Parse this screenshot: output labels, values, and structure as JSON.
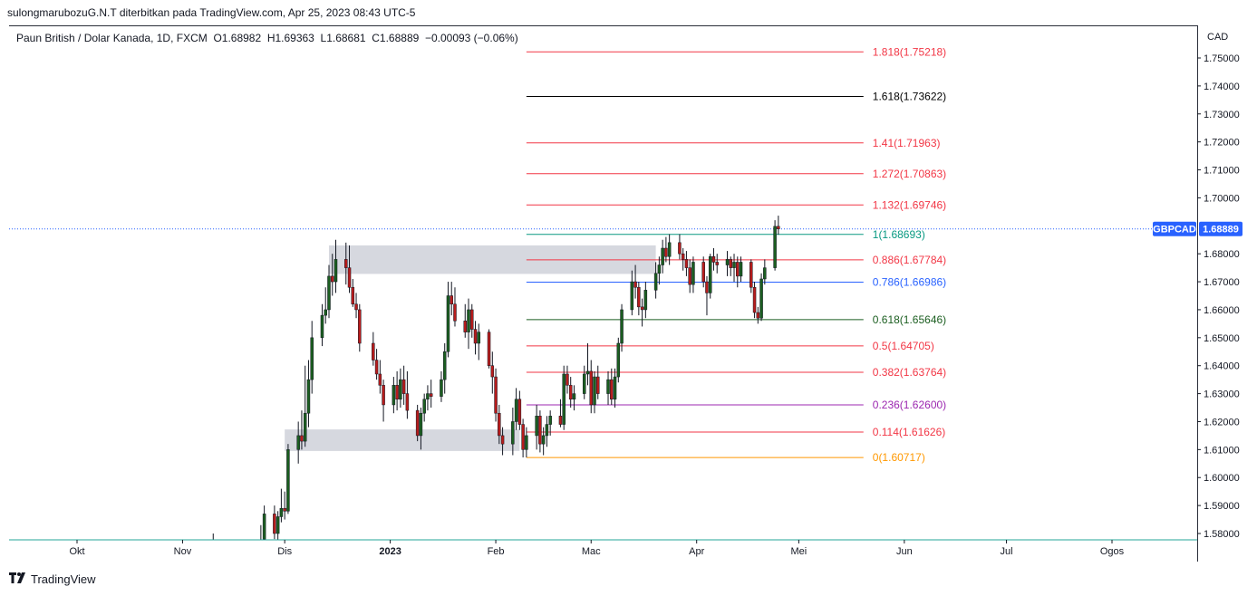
{
  "caption": "sulongmarubozuG.N.T diterbitkan pada TradingView.com, Apr 25, 2023 08:43 UTC-5",
  "symbol_info": {
    "name": "Paun British / Dolar Kanada, 1D, FXCM",
    "ohlc": "O1.68982  H1.69363  L1.68681  C1.68889  −0.00093 (−0.06%)"
  },
  "branding": {
    "logo": "TradingView"
  },
  "chart_data": {
    "type": "candlestick",
    "currency_label": "CAD",
    "ylim": [
      1.575,
      1.76
    ],
    "y_ticks": [
      {
        "value": 1.75,
        "label": "1.75000"
      },
      {
        "value": 1.74,
        "label": "1.74000"
      },
      {
        "value": 1.73,
        "label": "1.73000"
      },
      {
        "value": 1.72,
        "label": "1.72000"
      },
      {
        "value": 1.71,
        "label": "1.71000"
      },
      {
        "value": 1.7,
        "label": "1.70000"
      },
      {
        "value": 1.68,
        "label": "1.68000"
      },
      {
        "value": 1.67,
        "label": "1.67000"
      },
      {
        "value": 1.66,
        "label": "1.66000"
      },
      {
        "value": 1.65,
        "label": "1.65000"
      },
      {
        "value": 1.64,
        "label": "1.64000"
      },
      {
        "value": 1.63,
        "label": "1.63000"
      },
      {
        "value": 1.62,
        "label": "1.62000"
      },
      {
        "value": 1.61,
        "label": "1.61000"
      },
      {
        "value": 1.6,
        "label": "1.60000"
      },
      {
        "value": 1.59,
        "label": "1.59000"
      },
      {
        "value": 1.58,
        "label": "1.58000"
      }
    ],
    "x_axis": {
      "start_date": "2022-09-30",
      "end_date": "2023-09-10",
      "ticks": [
        {
          "date": "2022-10-01",
          "label": "Okt",
          "bold": false
        },
        {
          "date": "2022-11-01",
          "label": "Nov",
          "bold": false
        },
        {
          "date": "2022-12-01",
          "label": "Dis",
          "bold": false
        },
        {
          "date": "2023-01-01",
          "label": "2023",
          "bold": true
        },
        {
          "date": "2023-02-01",
          "label": "Feb",
          "bold": false
        },
        {
          "date": "2023-03-01",
          "label": "Mac",
          "bold": false
        },
        {
          "date": "2023-04-01",
          "label": "Apr",
          "bold": false
        },
        {
          "date": "2023-05-01",
          "label": "Mei",
          "bold": false
        },
        {
          "date": "2023-06-01",
          "label": "Jun",
          "bold": false
        },
        {
          "date": "2023-07-01",
          "label": "Jul",
          "bold": false
        },
        {
          "date": "2023-08-01",
          "label": "Ogos",
          "bold": false
        }
      ]
    },
    "last_price": {
      "symbol": "GBPCAD",
      "value": 1.68889,
      "label": "1.68889",
      "color": "#2962ff"
    },
    "colors": {
      "up": "#1b5e20",
      "down": "#b71c1c",
      "zone": "#d1d4dc"
    },
    "fib_levels": [
      {
        "ratio": "1.818",
        "price": 1.75218,
        "label": "1.818(1.75218)",
        "color": "#f23645"
      },
      {
        "ratio": "1.618",
        "price": 1.73622,
        "label": "1.618(1.73622)",
        "color": "#000000"
      },
      {
        "ratio": "1.41",
        "price": 1.71963,
        "label": "1.41(1.71963)",
        "color": "#f23645"
      },
      {
        "ratio": "1.272",
        "price": 1.70863,
        "label": "1.272(1.70863)",
        "color": "#f23645"
      },
      {
        "ratio": "1.132",
        "price": 1.69746,
        "label": "1.132(1.69746)",
        "color": "#f23645"
      },
      {
        "ratio": "1",
        "price": 1.68693,
        "label": "1(1.68693)",
        "color": "#089981"
      },
      {
        "ratio": "0.886",
        "price": 1.67784,
        "label": "0.886(1.67784)",
        "color": "#f23645"
      },
      {
        "ratio": "0.786",
        "price": 1.66986,
        "label": "0.786(1.66986)",
        "color": "#2962ff"
      },
      {
        "ratio": "0.618",
        "price": 1.65646,
        "label": "0.618(1.65646)",
        "color": "#1b5e20"
      },
      {
        "ratio": "0.5",
        "price": 1.64705,
        "label": "0.5(1.64705)",
        "color": "#f23645"
      },
      {
        "ratio": "0.382",
        "price": 1.63764,
        "label": "0.382(1.63764)",
        "color": "#f23645"
      },
      {
        "ratio": "0.236",
        "price": 1.626,
        "label": "0.236(1.62600)",
        "color": "#9c27b0"
      },
      {
        "ratio": "0.114",
        "price": 1.61626,
        "label": "0.114(1.61626)",
        "color": "#f23645"
      },
      {
        "ratio": "0",
        "price": 1.60717,
        "label": "0(1.60717)",
        "color": "#ff9800"
      }
    ],
    "fib_range": {
      "start_date": "2023-02-10",
      "end_date": "2023-05-20"
    },
    "zones": [
      {
        "start_date": "2022-12-14",
        "end_date": "2023-03-20",
        "top": 1.683,
        "bottom": 1.6728
      },
      {
        "start_date": "2022-12-01",
        "end_date": "2023-02-08",
        "top": 1.6172,
        "bottom": 1.6095
      }
    ],
    "candles": [
      {
        "date": "2022-11-10",
        "o": 1.574,
        "h": 1.58,
        "l": 1.57,
        "c": 1.576
      },
      {
        "date": "2022-11-24",
        "o": 1.5755,
        "h": 1.583,
        "l": 1.573,
        "c": 1.577
      },
      {
        "date": "2022-11-25",
        "o": 1.578,
        "h": 1.59,
        "l": 1.576,
        "c": 1.587
      },
      {
        "date": "2022-11-28",
        "o": 1.587,
        "h": 1.59,
        "l": 1.578,
        "c": 1.58
      },
      {
        "date": "2022-11-29",
        "o": 1.58,
        "h": 1.588,
        "l": 1.577,
        "c": 1.586
      },
      {
        "date": "2022-11-30",
        "o": 1.586,
        "h": 1.596,
        "l": 1.584,
        "c": 1.589
      },
      {
        "date": "2022-12-01",
        "o": 1.589,
        "h": 1.595,
        "l": 1.585,
        "c": 1.588
      },
      {
        "date": "2022-12-02",
        "o": 1.588,
        "h": 1.612,
        "l": 1.587,
        "c": 1.61
      },
      {
        "date": "2022-12-05",
        "o": 1.61,
        "h": 1.62,
        "l": 1.605,
        "c": 1.615
      },
      {
        "date": "2022-12-06",
        "o": 1.615,
        "h": 1.624,
        "l": 1.61,
        "c": 1.613
      },
      {
        "date": "2022-12-07",
        "o": 1.613,
        "h": 1.64,
        "l": 1.611,
        "c": 1.623
      },
      {
        "date": "2022-12-08",
        "o": 1.623,
        "h": 1.642,
        "l": 1.618,
        "c": 1.635
      },
      {
        "date": "2022-12-09",
        "o": 1.635,
        "h": 1.656,
        "l": 1.63,
        "c": 1.65
      },
      {
        "date": "2022-12-12",
        "o": 1.65,
        "h": 1.662,
        "l": 1.647,
        "c": 1.658
      },
      {
        "date": "2022-12-13",
        "o": 1.658,
        "h": 1.668,
        "l": 1.655,
        "c": 1.66
      },
      {
        "date": "2022-12-14",
        "o": 1.66,
        "h": 1.676,
        "l": 1.657,
        "c": 1.672
      },
      {
        "date": "2022-12-15",
        "o": 1.672,
        "h": 1.68,
        "l": 1.665,
        "c": 1.67
      },
      {
        "date": "2022-12-16",
        "o": 1.67,
        "h": 1.685,
        "l": 1.666,
        "c": 1.678
      },
      {
        "date": "2022-12-19",
        "o": 1.678,
        "h": 1.684,
        "l": 1.669,
        "c": 1.675
      },
      {
        "date": "2022-12-20",
        "o": 1.675,
        "h": 1.683,
        "l": 1.666,
        "c": 1.668
      },
      {
        "date": "2022-12-21",
        "o": 1.668,
        "h": 1.671,
        "l": 1.661,
        "c": 1.662
      },
      {
        "date": "2022-12-22",
        "o": 1.662,
        "h": 1.666,
        "l": 1.657,
        "c": 1.66
      },
      {
        "date": "2022-12-23",
        "o": 1.66,
        "h": 1.662,
        "l": 1.645,
        "c": 1.648
      },
      {
        "date": "2022-12-27",
        "o": 1.648,
        "h": 1.652,
        "l": 1.64,
        "c": 1.642
      },
      {
        "date": "2022-12-28",
        "o": 1.642,
        "h": 1.646,
        "l": 1.635,
        "c": 1.637
      },
      {
        "date": "2022-12-29",
        "o": 1.637,
        "h": 1.642,
        "l": 1.63,
        "c": 1.633
      },
      {
        "date": "2022-12-30",
        "o": 1.633,
        "h": 1.635,
        "l": 1.62,
        "c": 1.626
      },
      {
        "date": "2023-01-02",
        "o": 1.626,
        "h": 1.636,
        "l": 1.623,
        "c": 1.633
      },
      {
        "date": "2023-01-03",
        "o": 1.633,
        "h": 1.638,
        "l": 1.624,
        "c": 1.628
      },
      {
        "date": "2023-01-04",
        "o": 1.628,
        "h": 1.639,
        "l": 1.625,
        "c": 1.635
      },
      {
        "date": "2023-01-05",
        "o": 1.635,
        "h": 1.64,
        "l": 1.626,
        "c": 1.63
      },
      {
        "date": "2023-01-06",
        "o": 1.63,
        "h": 1.638,
        "l": 1.621,
        "c": 1.624
      },
      {
        "date": "2023-01-09",
        "o": 1.624,
        "h": 1.626,
        "l": 1.613,
        "c": 1.615
      },
      {
        "date": "2023-01-10",
        "o": 1.615,
        "h": 1.625,
        "l": 1.61,
        "c": 1.623
      },
      {
        "date": "2023-01-11",
        "o": 1.623,
        "h": 1.63,
        "l": 1.62,
        "c": 1.628
      },
      {
        "date": "2023-01-12",
        "o": 1.628,
        "h": 1.633,
        "l": 1.624,
        "c": 1.63
      },
      {
        "date": "2023-01-13",
        "o": 1.63,
        "h": 1.635,
        "l": 1.625,
        "c": 1.629
      },
      {
        "date": "2023-01-16",
        "o": 1.629,
        "h": 1.638,
        "l": 1.627,
        "c": 1.635
      },
      {
        "date": "2023-01-17",
        "o": 1.635,
        "h": 1.648,
        "l": 1.63,
        "c": 1.645
      },
      {
        "date": "2023-01-18",
        "o": 1.645,
        "h": 1.67,
        "l": 1.643,
        "c": 1.665
      },
      {
        "date": "2023-01-19",
        "o": 1.665,
        "h": 1.67,
        "l": 1.658,
        "c": 1.662
      },
      {
        "date": "2023-01-20",
        "o": 1.662,
        "h": 1.668,
        "l": 1.654,
        "c": 1.656
      },
      {
        "date": "2023-01-23",
        "o": 1.656,
        "h": 1.662,
        "l": 1.65,
        "c": 1.652
      },
      {
        "date": "2023-01-24",
        "o": 1.652,
        "h": 1.664,
        "l": 1.646,
        "c": 1.66
      },
      {
        "date": "2023-01-25",
        "o": 1.66,
        "h": 1.662,
        "l": 1.65,
        "c": 1.653
      },
      {
        "date": "2023-01-26",
        "o": 1.653,
        "h": 1.656,
        "l": 1.644,
        "c": 1.648
      },
      {
        "date": "2023-01-27",
        "o": 1.648,
        "h": 1.655,
        "l": 1.642,
        "c": 1.652
      },
      {
        "date": "2023-01-30",
        "o": 1.652,
        "h": 1.653,
        "l": 1.639,
        "c": 1.64
      },
      {
        "date": "2023-01-31",
        "o": 1.64,
        "h": 1.645,
        "l": 1.63,
        "c": 1.636
      },
      {
        "date": "2023-02-01",
        "o": 1.636,
        "h": 1.639,
        "l": 1.62,
        "c": 1.623
      },
      {
        "date": "2023-02-02",
        "o": 1.623,
        "h": 1.626,
        "l": 1.612,
        "c": 1.615
      },
      {
        "date": "2023-02-03",
        "o": 1.615,
        "h": 1.618,
        "l": 1.608,
        "c": 1.612
      },
      {
        "date": "2023-02-06",
        "o": 1.612,
        "h": 1.625,
        "l": 1.608,
        "c": 1.62
      },
      {
        "date": "2023-02-07",
        "o": 1.62,
        "h": 1.632,
        "l": 1.617,
        "c": 1.628
      },
      {
        "date": "2023-02-08",
        "o": 1.628,
        "h": 1.631,
        "l": 1.617,
        "c": 1.619
      },
      {
        "date": "2023-02-09",
        "o": 1.619,
        "h": 1.621,
        "l": 1.6072,
        "c": 1.61
      },
      {
        "date": "2023-02-10",
        "o": 1.61,
        "h": 1.618,
        "l": 1.6072,
        "c": 1.615
      },
      {
        "date": "2023-02-13",
        "o": 1.615,
        "h": 1.626,
        "l": 1.61,
        "c": 1.622
      },
      {
        "date": "2023-02-14",
        "o": 1.622,
        "h": 1.624,
        "l": 1.609,
        "c": 1.612
      },
      {
        "date": "2023-02-15",
        "o": 1.612,
        "h": 1.618,
        "l": 1.608,
        "c": 1.615
      },
      {
        "date": "2023-02-16",
        "o": 1.615,
        "h": 1.622,
        "l": 1.611,
        "c": 1.619
      },
      {
        "date": "2023-02-17",
        "o": 1.619,
        "h": 1.624,
        "l": 1.615,
        "c": 1.622
      },
      {
        "date": "2023-02-20",
        "o": 1.622,
        "h": 1.628,
        "l": 1.618,
        "c": 1.619
      },
      {
        "date": "2023-02-21",
        "o": 1.619,
        "h": 1.64,
        "l": 1.617,
        "c": 1.637
      },
      {
        "date": "2023-02-22",
        "o": 1.637,
        "h": 1.64,
        "l": 1.63,
        "c": 1.633
      },
      {
        "date": "2023-02-23",
        "o": 1.633,
        "h": 1.636,
        "l": 1.625,
        "c": 1.628
      },
      {
        "date": "2023-02-24",
        "o": 1.628,
        "h": 1.633,
        "l": 1.624,
        "c": 1.63
      },
      {
        "date": "2023-02-27",
        "o": 1.63,
        "h": 1.64,
        "l": 1.628,
        "c": 1.637
      },
      {
        "date": "2023-02-28",
        "o": 1.637,
        "h": 1.648,
        "l": 1.633,
        "c": 1.638
      },
      {
        "date": "2023-03-01",
        "o": 1.638,
        "h": 1.642,
        "l": 1.623,
        "c": 1.626
      },
      {
        "date": "2023-03-02",
        "o": 1.626,
        "h": 1.638,
        "l": 1.623,
        "c": 1.636
      },
      {
        "date": "2023-03-03",
        "o": 1.636,
        "h": 1.64,
        "l": 1.628,
        "c": 1.63
      },
      {
        "date": "2023-03-06",
        "o": 1.63,
        "h": 1.638,
        "l": 1.626,
        "c": 1.635
      },
      {
        "date": "2023-03-07",
        "o": 1.635,
        "h": 1.639,
        "l": 1.626,
        "c": 1.628
      },
      {
        "date": "2023-03-08",
        "o": 1.628,
        "h": 1.639,
        "l": 1.625,
        "c": 1.636
      },
      {
        "date": "2023-03-09",
        "o": 1.636,
        "h": 1.65,
        "l": 1.634,
        "c": 1.648
      },
      {
        "date": "2023-03-10",
        "o": 1.648,
        "h": 1.662,
        "l": 1.645,
        "c": 1.66
      },
      {
        "date": "2023-03-13",
        "o": 1.66,
        "h": 1.674,
        "l": 1.658,
        "c": 1.67
      },
      {
        "date": "2023-03-14",
        "o": 1.67,
        "h": 1.676,
        "l": 1.664,
        "c": 1.668
      },
      {
        "date": "2023-03-15",
        "o": 1.668,
        "h": 1.67,
        "l": 1.658,
        "c": 1.661
      },
      {
        "date": "2023-03-16",
        "o": 1.661,
        "h": 1.664,
        "l": 1.654,
        "c": 1.66
      },
      {
        "date": "2023-03-17",
        "o": 1.66,
        "h": 1.67,
        "l": 1.657,
        "c": 1.667
      },
      {
        "date": "2023-03-20",
        "o": 1.667,
        "h": 1.677,
        "l": 1.664,
        "c": 1.673
      },
      {
        "date": "2023-03-21",
        "o": 1.673,
        "h": 1.679,
        "l": 1.669,
        "c": 1.676
      },
      {
        "date": "2023-03-22",
        "o": 1.676,
        "h": 1.685,
        "l": 1.673,
        "c": 1.682
      },
      {
        "date": "2023-03-23",
        "o": 1.682,
        "h": 1.686,
        "l": 1.677,
        "c": 1.679
      },
      {
        "date": "2023-03-24",
        "o": 1.679,
        "h": 1.687,
        "l": 1.676,
        "c": 1.684
      },
      {
        "date": "2023-03-27",
        "o": 1.684,
        "h": 1.687,
        "l": 1.678,
        "c": 1.68
      },
      {
        "date": "2023-03-28",
        "o": 1.68,
        "h": 1.682,
        "l": 1.674,
        "c": 1.678
      },
      {
        "date": "2023-03-29",
        "o": 1.678,
        "h": 1.681,
        "l": 1.672,
        "c": 1.675
      },
      {
        "date": "2023-03-30",
        "o": 1.675,
        "h": 1.678,
        "l": 1.666,
        "c": 1.669
      },
      {
        "date": "2023-03-31",
        "o": 1.669,
        "h": 1.679,
        "l": 1.666,
        "c": 1.677
      },
      {
        "date": "2023-04-03",
        "o": 1.677,
        "h": 1.679,
        "l": 1.668,
        "c": 1.67
      },
      {
        "date": "2023-04-04",
        "o": 1.67,
        "h": 1.672,
        "l": 1.658,
        "c": 1.666
      },
      {
        "date": "2023-04-05",
        "o": 1.666,
        "h": 1.68,
        "l": 1.664,
        "c": 1.679
      },
      {
        "date": "2023-04-06",
        "o": 1.679,
        "h": 1.682,
        "l": 1.674,
        "c": 1.677
      },
      {
        "date": "2023-04-07",
        "o": 1.677,
        "h": 1.68,
        "l": 1.673,
        "c": 1.676
      },
      {
        "date": "2023-04-10",
        "o": 1.676,
        "h": 1.681,
        "l": 1.672,
        "c": 1.678
      },
      {
        "date": "2023-04-11",
        "o": 1.678,
        "h": 1.679,
        "l": 1.672,
        "c": 1.675
      },
      {
        "date": "2023-04-12",
        "o": 1.675,
        "h": 1.68,
        "l": 1.67,
        "c": 1.677
      },
      {
        "date": "2023-04-13",
        "o": 1.677,
        "h": 1.679,
        "l": 1.668,
        "c": 1.672
      },
      {
        "date": "2023-04-14",
        "o": 1.672,
        "h": 1.679,
        "l": 1.67,
        "c": 1.677
      },
      {
        "date": "2023-04-17",
        "o": 1.677,
        "h": 1.678,
        "l": 1.666,
        "c": 1.668
      },
      {
        "date": "2023-04-18",
        "o": 1.668,
        "h": 1.67,
        "l": 1.657,
        "c": 1.659
      },
      {
        "date": "2023-04-19",
        "o": 1.659,
        "h": 1.661,
        "l": 1.655,
        "c": 1.657
      },
      {
        "date": "2023-04-20",
        "o": 1.657,
        "h": 1.673,
        "l": 1.656,
        "c": 1.671
      },
      {
        "date": "2023-04-21",
        "o": 1.671,
        "h": 1.678,
        "l": 1.669,
        "c": 1.675
      },
      {
        "date": "2023-04-24",
        "o": 1.675,
        "h": 1.692,
        "l": 1.674,
        "c": 1.6898
      },
      {
        "date": "2023-04-25",
        "o": 1.68982,
        "h": 1.69363,
        "l": 1.68681,
        "c": 1.68889
      }
    ]
  }
}
